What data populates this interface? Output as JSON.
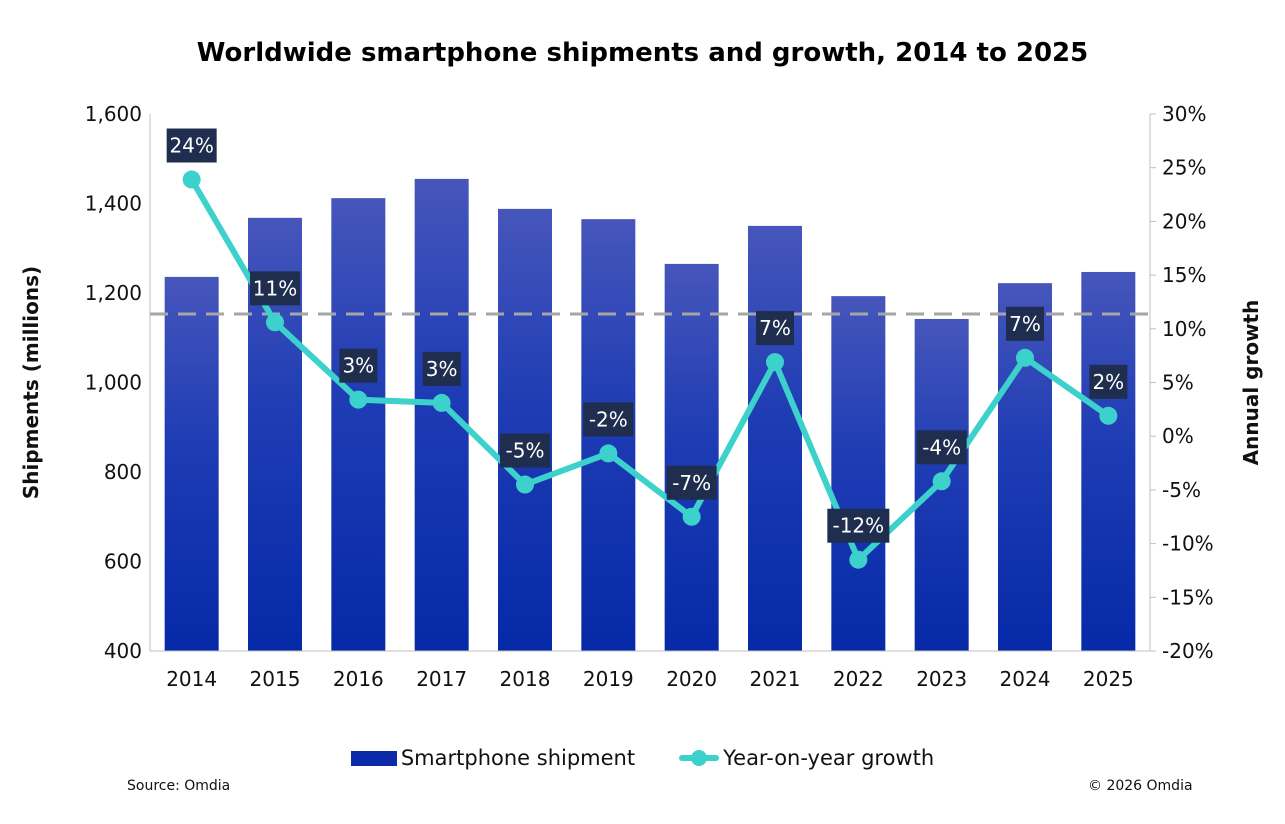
{
  "chart_data": {
    "type": "bar+line",
    "title": "Worldwide smartphone shipments and growth, 2014 to 2025",
    "ylabel": "Shipments (millions)",
    "y2label": "Annual growth",
    "ylim": [
      400,
      1600
    ],
    "y2lim": [
      -20,
      30
    ],
    "yticks": [
      "400",
      "600",
      "800",
      "1,000",
      "1,200",
      "1,400",
      "1,600"
    ],
    "y2ticks": [
      "-20%",
      "-15%",
      "-10%",
      "-5%",
      "0%",
      "5%",
      "10%",
      "15%",
      "20%",
      "25%",
      "30%"
    ],
    "categories": [
      "2014",
      "2015",
      "2016",
      "2017",
      "2018",
      "2019",
      "2020",
      "2021",
      "2022",
      "2023",
      "2024",
      "2025"
    ],
    "series": [
      {
        "name": "Smartphone shipment",
        "type": "bar",
        "axis": "left",
        "color": "#0a2aa8",
        "values": [
          1236,
          1368,
          1412,
          1455,
          1388,
          1365,
          1265,
          1350,
          1193,
          1142,
          1222,
          1247
        ]
      },
      {
        "name": "Year-on-year growth",
        "type": "line",
        "axis": "right",
        "color": "#3dd1cc",
        "values": [
          23.9,
          10.6,
          3.4,
          3.1,
          -4.5,
          -1.6,
          -7.5,
          6.9,
          -11.5,
          -4.2,
          7.3,
          1.9
        ],
        "labels": [
          "24%",
          "11%",
          "3%",
          "3%",
          "-5%",
          "-2%",
          "-7%",
          "7%",
          "-12%",
          "-4%",
          "7%",
          "2%"
        ]
      }
    ],
    "reference_line": {
      "value": 1153,
      "axis": "left",
      "style": "dashed",
      "color": "#a6a6a6"
    },
    "legend": "bottom",
    "grid": false
  },
  "footer": {
    "source": "Source: Omdia",
    "copyright": "© 2026 Omdia"
  }
}
